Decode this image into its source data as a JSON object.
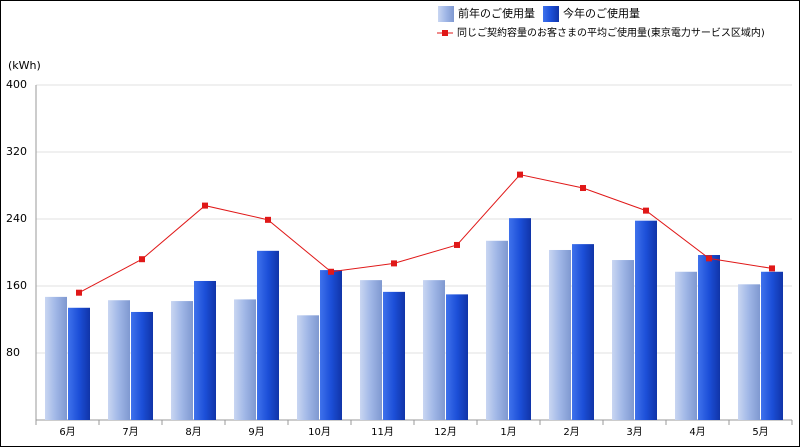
{
  "chart_data": {
    "type": "bar",
    "y_label": "(kWh)",
    "categories": [
      "6月",
      "7月",
      "8月",
      "9月",
      "10月",
      "11月",
      "12月",
      "1月",
      "2月",
      "3月",
      "4月",
      "5月"
    ],
    "series": [
      {
        "name": "前年のご使用量",
        "type": "bar",
        "color": "#9fb6e6",
        "values": [
          147,
          143,
          142,
          144,
          125,
          167,
          167,
          214,
          203,
          191,
          177,
          162
        ]
      },
      {
        "name": "今年のご使用量",
        "type": "bar",
        "color": "#1c4fd8",
        "values": [
          134,
          129,
          166,
          202,
          179,
          153,
          150,
          241,
          210,
          238,
          197,
          177
        ]
      },
      {
        "name": "同じご契約容量のお客さまの平均ご使用量(東京電力サービス区域内)",
        "type": "line",
        "color": "#e01818",
        "values": [
          152,
          192,
          256,
          239,
          177,
          187,
          209,
          293,
          277,
          250,
          193,
          181
        ]
      }
    ],
    "ylim": [
      0,
      400
    ],
    "yticks": [
      80,
      160,
      240,
      320,
      400
    ],
    "grid": true
  }
}
